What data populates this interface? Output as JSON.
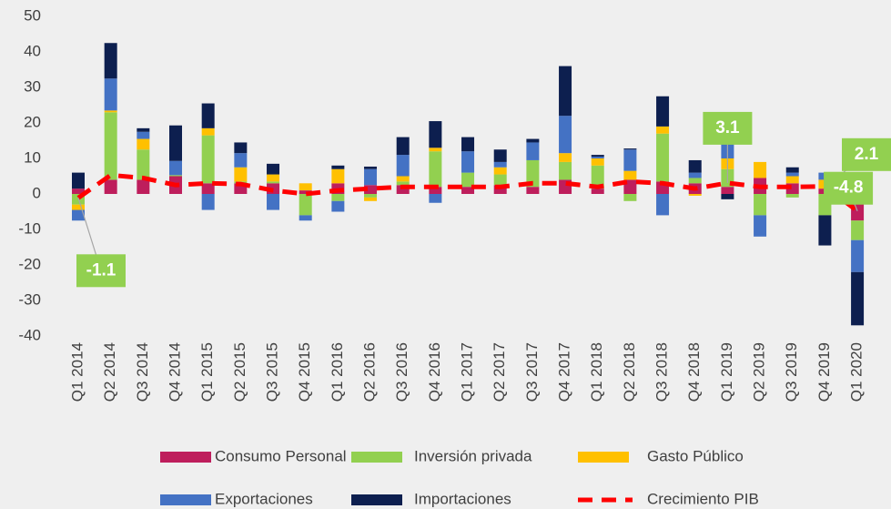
{
  "chart_data": {
    "type": "bar",
    "stacked": true,
    "categories": [
      "Q1 2014",
      "Q2 2014",
      "Q3 2014",
      "Q4 2014",
      "Q1 2015",
      "Q2 2015",
      "Q3 2015",
      "Q4 2015",
      "Q1 2016",
      "Q2 2016",
      "Q3 2016",
      "Q4 2016",
      "Q1 2017",
      "Q2 2017",
      "Q3 2017",
      "Q4 2017",
      "Q1 2018",
      "Q2 2018",
      "Q3 2018",
      "Q4 2018",
      "Q1 2019",
      "Q2 2019",
      "Q3 2019",
      "Q4 2019",
      "Q1 2020"
    ],
    "series": [
      {
        "name": "Consumo Personal",
        "color": "#be1e5c",
        "values": [
          1.5,
          4,
          4,
          5,
          3,
          3,
          3,
          1,
          3,
          2.5,
          2.5,
          2,
          2,
          2.5,
          2,
          4,
          1.5,
          4,
          3.5,
          3,
          2,
          4.5,
          3,
          1.5,
          -7.5
        ]
      },
      {
        "name": "Inversión privada",
        "color": "#92d050",
        "values": [
          -3,
          19,
          8.5,
          0.3,
          13.5,
          0.5,
          0.5,
          -6,
          -2,
          -1,
          1,
          10,
          4,
          3,
          7.5,
          5,
          6.5,
          -2,
          13.5,
          1.5,
          5,
          -6,
          -1,
          -6,
          -5.5
        ]
      },
      {
        "name": "Gasto Público",
        "color": "#ffc000",
        "values": [
          -1.5,
          0.5,
          3,
          0,
          2,
          4,
          2,
          2,
          4,
          -1,
          1.5,
          1,
          0,
          2,
          0,
          2.5,
          2,
          2.5,
          2,
          -0.5,
          3,
          4.5,
          2,
          2.5,
          0.5
        ]
      },
      {
        "name": "Exportaciones",
        "color": "#4472c4",
        "values": [
          -3,
          9,
          2,
          4,
          -4.5,
          4,
          -4.5,
          -1.5,
          -3,
          4.5,
          6,
          -2.5,
          6,
          1.5,
          5,
          10.5,
          0.5,
          6,
          -6,
          1.5,
          4,
          -6,
          1,
          2,
          -9
        ]
      },
      {
        "name": "Importaciones",
        "color": "#0d1f4f",
        "values": [
          4.5,
          10,
          1,
          10,
          7,
          3,
          3,
          0,
          1,
          0.7,
          5,
          7.5,
          4,
          3.5,
          1,
          14,
          0.5,
          0.3,
          8.5,
          3.5,
          -1.5,
          0,
          1.5,
          -8.5,
          -15
        ]
      },
      {
        "name": "Crecimiento PIB",
        "color": "#ff0000",
        "type": "line",
        "values": [
          -1.1,
          5.3,
          4.5,
          2.5,
          3,
          2.8,
          1,
          0,
          1,
          1.5,
          2,
          2,
          2,
          2,
          3,
          3,
          2,
          3.5,
          3,
          1.5,
          3.1,
          2,
          2,
          2.1,
          -4.8
        ],
        "value_labels": [
          "-1.1",
          null,
          null,
          null,
          null,
          null,
          null,
          null,
          null,
          null,
          null,
          null,
          null,
          null,
          null,
          null,
          null,
          null,
          null,
          null,
          "3.1",
          null,
          null,
          "2.1",
          "-4.8"
        ]
      }
    ],
    "ylim": [
      -40,
      50
    ],
    "yticks": [
      -40,
      -30,
      -20,
      -10,
      0,
      10,
      20,
      30,
      40,
      50
    ],
    "legend": "bottom"
  }
}
